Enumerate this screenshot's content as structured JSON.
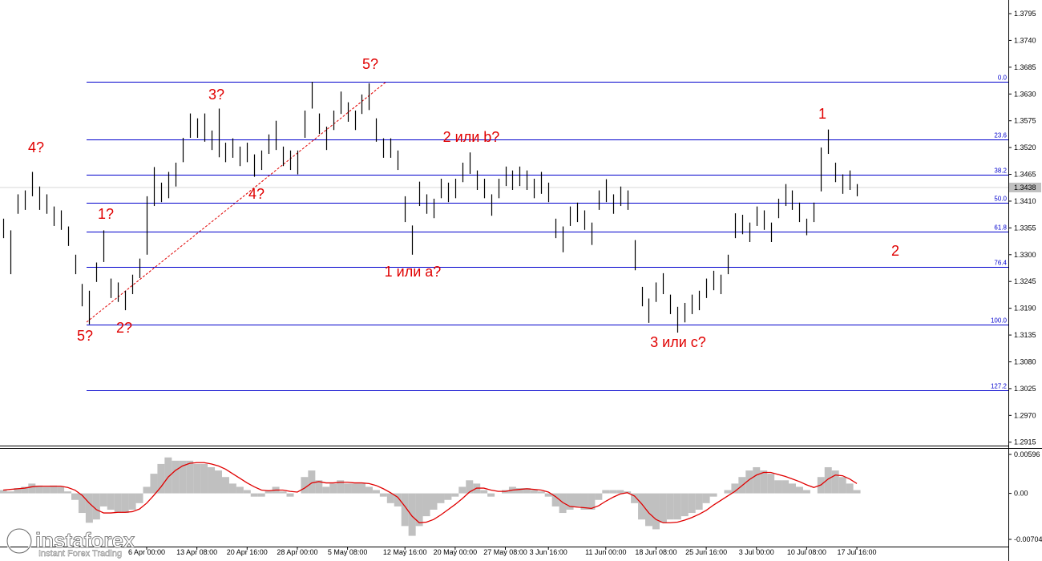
{
  "chart_data": [
    {
      "type": "ohlc",
      "color": "#000000",
      "fib_color": "#0000cd",
      "annotation_color": "#e00000",
      "x": [
        null,
        null,
        null,
        null,
        null,
        null,
        null,
        null,
        null,
        null,
        null,
        null,
        null,
        null,
        null,
        null,
        null,
        null,
        null,
        null,
        "6 Apr 00:00",
        null,
        null,
        null,
        null,
        null,
        null,
        "13 Apr 08:00",
        null,
        null,
        null,
        null,
        null,
        null,
        "20 Apr 16:00",
        null,
        null,
        null,
        null,
        null,
        null,
        "28 Apr 00:00",
        null,
        null,
        null,
        null,
        null,
        null,
        "5 May 08:00",
        null,
        null,
        null,
        null,
        null,
        null,
        null,
        "12 May 16:00",
        null,
        null,
        null,
        null,
        null,
        null,
        "20 May 00:00",
        null,
        null,
        null,
        null,
        null,
        null,
        "27 May 08:00",
        null,
        null,
        null,
        null,
        null,
        "3 Jun 16:00",
        null,
        null,
        null,
        null,
        null,
        null,
        null,
        "11 Jun 00:00",
        null,
        null,
        null,
        null,
        null,
        null,
        "18 Jun 08:00",
        null,
        null,
        null,
        null,
        null,
        null,
        "25 Jun 16:00",
        null,
        null,
        null,
        null,
        null,
        null,
        "3 Jul 00:00",
        null,
        null,
        null,
        null,
        null,
        null,
        "10 Jul 08:00",
        null,
        null,
        null,
        null,
        null,
        null,
        "17 Jul 16:00"
      ],
      "high": [
        1.3374,
        1.335,
        1.3424,
        1.3432,
        1.347,
        1.344,
        1.3424,
        1.3399,
        1.3391,
        1.3358,
        1.33,
        1.324,
        1.3226,
        1.3284,
        1.335,
        1.3251,
        1.3243,
        1.3226,
        1.3259,
        1.3292,
        1.342,
        1.348,
        1.3448,
        1.347,
        1.3489,
        1.354,
        1.359,
        1.358,
        1.359,
        1.3555,
        1.36,
        1.353,
        1.3539,
        1.3522,
        1.353,
        1.3506,
        1.3514,
        1.3547,
        1.3575,
        1.3522,
        1.3514,
        1.3514,
        1.3596,
        1.3655,
        1.359,
        1.3563,
        1.3596,
        1.3635,
        1.3613,
        1.3596,
        1.3629,
        1.3652,
        1.358,
        1.3539,
        1.3539,
        1.3514,
        1.342,
        1.336,
        1.345,
        1.3424,
        1.3415,
        1.3456,
        1.3448,
        1.3456,
        1.3489,
        1.351,
        1.3473,
        1.3456,
        1.3424,
        1.3456,
        1.3481,
        1.3473,
        1.3481,
        1.3473,
        1.3456,
        1.347,
        1.3448,
        1.3374,
        1.3358,
        1.3399,
        1.3407,
        1.3391,
        1.3366,
        1.3432,
        1.3455,
        1.3424,
        1.344,
        1.3432,
        1.333,
        1.3234,
        1.321,
        1.3243,
        1.3262,
        1.3218,
        1.3193,
        1.3201,
        1.3218,
        1.3226,
        1.3251,
        1.3267,
        1.3259,
        1.33,
        1.3385,
        1.3382,
        1.3366,
        1.3399,
        1.3391,
        1.3366,
        1.3415,
        1.3445,
        1.3432,
        1.3407,
        1.3374,
        1.3407,
        1.352,
        1.3557,
        1.3489,
        1.3465,
        1.3473,
        1.3445
      ],
      "low": [
        1.3334,
        1.326,
        1.3384,
        1.3392,
        1.342,
        1.3392,
        1.3384,
        1.3359,
        1.3351,
        1.3318,
        1.326,
        1.3194,
        1.3157,
        1.3244,
        1.3285,
        1.3211,
        1.3203,
        1.3186,
        1.3219,
        1.3252,
        1.33,
        1.34,
        1.3408,
        1.3416,
        1.344,
        1.349,
        1.354,
        1.354,
        1.3532,
        1.3515,
        1.35,
        1.349,
        1.3499,
        1.3482,
        1.349,
        1.346,
        1.3474,
        1.3507,
        1.3515,
        1.3482,
        1.3474,
        1.3465,
        1.354,
        1.36,
        1.3548,
        1.3515,
        1.3556,
        1.3589,
        1.3573,
        1.3556,
        1.3589,
        1.3597,
        1.3532,
        1.3499,
        1.3499,
        1.3474,
        1.3367,
        1.33,
        1.34,
        1.3384,
        1.3375,
        1.3416,
        1.3408,
        1.3416,
        1.3449,
        1.3466,
        1.3433,
        1.3416,
        1.338,
        1.3416,
        1.3441,
        1.3433,
        1.3441,
        1.3433,
        1.3416,
        1.3425,
        1.3408,
        1.3334,
        1.3305,
        1.3359,
        1.3367,
        1.3351,
        1.332,
        1.3392,
        1.3408,
        1.3384,
        1.34,
        1.3392,
        1.3268,
        1.3194,
        1.316,
        1.3203,
        1.3219,
        1.3178,
        1.314,
        1.3161,
        1.3178,
        1.3186,
        1.3211,
        1.3227,
        1.3219,
        1.326,
        1.3334,
        1.3342,
        1.3326,
        1.3359,
        1.3351,
        1.3326,
        1.3375,
        1.34,
        1.3392,
        1.3367,
        1.334,
        1.3367,
        1.343,
        1.3507,
        1.3449,
        1.3425,
        1.3433,
        1.342
      ],
      "ylim": [
        1.2908,
        1.3823
      ],
      "yticks": [
        1.2915,
        {
          "value": 1.297,
          "label": "1.2970"
        },
        1.3025,
        {
          "value": 1.308,
          "label": "1.3080"
        },
        1.3135,
        {
          "value": 1.319,
          "label": "1.3190"
        },
        1.3245,
        {
          "value": 1.33,
          "label": "1.3300"
        },
        1.3355,
        {
          "value": 1.341,
          "label": "1.3410"
        },
        1.3465,
        {
          "value": 1.352,
          "label": "1.3520"
        },
        1.3575,
        {
          "value": 1.363,
          "label": "1.3630"
        },
        1.3685,
        {
          "value": 1.374,
          "label": "1.3740"
        },
        1.3795
      ],
      "current_price": 1.3438,
      "fib_levels": [
        {
          "value": 1.3655,
          "label": "0.0"
        },
        {
          "value": 1.3537,
          "label": "23.6"
        },
        {
          "value": 1.3465,
          "label": "38.2"
        },
        {
          "value": 1.3406,
          "label": "50.0"
        },
        {
          "value": 1.3347,
          "label": "61.8"
        },
        {
          "value": 1.3275,
          "label": "76.4"
        },
        {
          "value": 1.3157,
          "label": "100.0"
        },
        {
          "value": 1.3022,
          "label": "127.2"
        }
      ],
      "annotations": [
        "4?",
        "1?",
        "5?",
        "2?",
        "3?",
        "4?",
        "5?",
        "2 или b?",
        "1 или a?",
        "3 или c?",
        "1",
        "2"
      ]
    },
    {
      "type": "macd",
      "histogram_color": "#c0c0c0",
      "signal_color": "#e00000",
      "histogram": [
        0.0005,
        0.0003,
        0.0008,
        0.001,
        0.0015,
        0.0012,
        0.001,
        0.0012,
        0.001,
        0.0003,
        -0.001,
        -0.003,
        -0.0045,
        -0.004,
        -0.002,
        -0.0025,
        -0.003,
        -0.003,
        -0.0025,
        -0.0015,
        0.001,
        0.003,
        0.0045,
        0.0055,
        0.005,
        0.005,
        0.005,
        0.0045,
        0.0045,
        0.004,
        0.0035,
        0.0025,
        0.0015,
        0.001,
        0.0005,
        -0.0005,
        -0.0005,
        0.0005,
        0.001,
        0.0003,
        -0.0005,
        0,
        0.0025,
        0.0035,
        0.002,
        0.001,
        0.0015,
        0.002,
        0.0015,
        0.0015,
        0.0015,
        0.001,
        0.0005,
        -0.0005,
        -0.0015,
        -0.002,
        -0.005,
        -0.0065,
        -0.005,
        -0.0035,
        -0.0025,
        -0.0015,
        -0.001,
        -0.0005,
        0.001,
        0.002,
        0.0015,
        0.0005,
        -0.0005,
        0,
        0.0005,
        0.001,
        0.0008,
        0.0008,
        0.0005,
        0.0003,
        -0.0005,
        -0.002,
        -0.003,
        -0.0025,
        -0.002,
        -0.0025,
        -0.0025,
        -0.001,
        0.0005,
        0.0005,
        0.0005,
        0.0003,
        -0.0015,
        -0.004,
        -0.005,
        -0.0055,
        -0.0045,
        -0.004,
        -0.004,
        -0.0035,
        -0.003,
        -0.0025,
        -0.0015,
        -0.0005,
        0,
        0.0005,
        0.0015,
        0.0025,
        0.0035,
        0.004,
        0.0035,
        0.003,
        0.002,
        0.002,
        0.0015,
        0.001,
        0.0005,
        0,
        0.0025,
        0.004,
        0.0035,
        0.0025,
        0.0015,
        0.0005
      ],
      "signal": [
        0.0005,
        0.0006,
        0.0007,
        0.0008,
        0.001,
        0.0011,
        0.0011,
        0.0011,
        0.0011,
        0.0009,
        0.0005,
        -0.0003,
        -0.0015,
        -0.0025,
        -0.003,
        -0.003,
        -0.0029,
        -0.0029,
        -0.0028,
        -0.0024,
        -0.0015,
        -0.0003,
        0.001,
        0.0025,
        0.0035,
        0.0042,
        0.0046,
        0.0047,
        0.0047,
        0.0045,
        0.0042,
        0.0037,
        0.003,
        0.0023,
        0.0016,
        0.001,
        0.0005,
        0.0004,
        0.0005,
        0.0005,
        0.0003,
        0.0002,
        0.0008,
        0.0016,
        0.0018,
        0.0016,
        0.0016,
        0.0017,
        0.0017,
        0.0016,
        0.0016,
        0.0015,
        0.0012,
        0.0007,
        0.0001,
        -0.0006,
        -0.002,
        -0.0035,
        -0.0045,
        -0.0044,
        -0.004,
        -0.0033,
        -0.0025,
        -0.0017,
        -0.0008,
        0.0002,
        0.0008,
        0.0008,
        0.0005,
        0.0003,
        0.0003,
        0.0005,
        0.0006,
        0.0007,
        0.0006,
        0.0005,
        0.0002,
        -0.0005,
        -0.0014,
        -0.002,
        -0.0021,
        -0.0022,
        -0.0023,
        -0.0019,
        -0.0012,
        -0.0006,
        -0.0001,
        0.0001,
        -0.0004,
        -0.0016,
        -0.003,
        -0.004,
        -0.0045,
        -0.0045,
        -0.0044,
        -0.0041,
        -0.0037,
        -0.0032,
        -0.0026,
        -0.0018,
        -0.0011,
        -0.0004,
        0.0003,
        0.0012,
        0.0021,
        0.0028,
        0.0032,
        0.0032,
        0.0029,
        0.0026,
        0.0022,
        0.0018,
        0.0013,
        0.0009,
        0.0013,
        0.0022,
        0.0028,
        0.0027,
        0.0022,
        0.0015
      ],
      "ylim": [
        -0.00974,
        0.00682
      ],
      "yticks": [
        0.00596,
        {
          "value": 0,
          "label": "0.00"
        },
        -0.00704
      ]
    }
  ],
  "logo": {
    "name": "instaforex",
    "tagline": "Instant Forex Trading"
  }
}
